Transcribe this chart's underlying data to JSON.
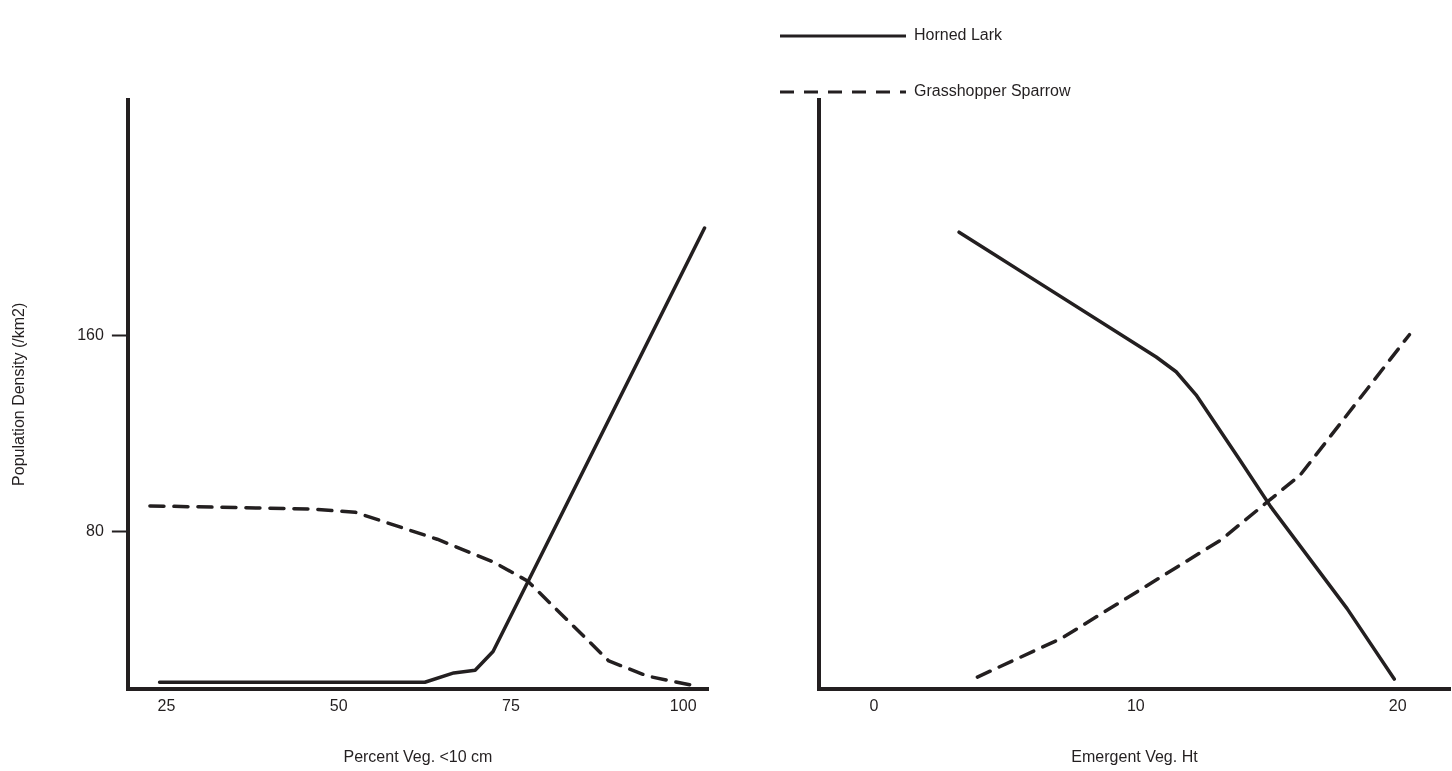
{
  "chart_data": [
    {
      "type": "line",
      "xlabel": "Percent Veg. <10 cm",
      "ylabel": "Population Density (/km2)",
      "xlim": [
        19.4,
        103.6
      ],
      "xticks": [
        25,
        50,
        75,
        100
      ],
      "ylim": [
        16,
        256
      ],
      "yticks": [
        80,
        160
      ],
      "grid": false,
      "legend": false,
      "marker": "none",
      "series": [
        {
          "color": "#231f20",
          "line_style": "solid",
          "x": [
            24.0,
            62.5,
            66.7,
            69.8,
            72.4,
            103.1
          ],
          "values": [
            18.6,
            18.6,
            22.4,
            23.5,
            31.1,
            203.8
          ]
        },
        {
          "color": "#231f20",
          "line_style": "dashed",
          "x": [
            22.6,
            46.2,
            52.4,
            64.3,
            72.6,
            77.4,
            89.2,
            94.8,
            101.4
          ],
          "values": [
            90.5,
            89.2,
            87.9,
            76.9,
            67.4,
            59.9,
            27.3,
            21.1,
            17.3
          ]
        }
      ]
    },
    {
      "type": "line",
      "xlabel": "Emergent Veg. Ht",
      "xlim": [
        -2.1,
        22
      ],
      "xticks": [
        0,
        10,
        20
      ],
      "ylim": [
        16,
        256
      ],
      "tick_labels": "x",
      "grid": false,
      "legend": "top left",
      "marker": "none",
      "series": [
        {
          "name": "Horned Lark",
          "color": "#231f20",
          "line_style": "solid",
          "x": [
            3.25,
            10.78,
            11.54,
            12.3,
            13.91,
            15.15,
            18.07,
            19.87
          ],
          "values": [
            202.1,
            151.2,
            145.2,
            135.8,
            110.2,
            90.2,
            48.6,
            19.9
          ]
        },
        {
          "name": "Grasshopper Sparrow",
          "color": "#231f20",
          "line_style": "dashed",
          "x": [
            3.95,
            7.18,
            13.25,
            16.29,
            20.45
          ],
          "values": [
            20.7,
            36.6,
            76.6,
            103.2,
            160.3
          ]
        }
      ]
    }
  ]
}
